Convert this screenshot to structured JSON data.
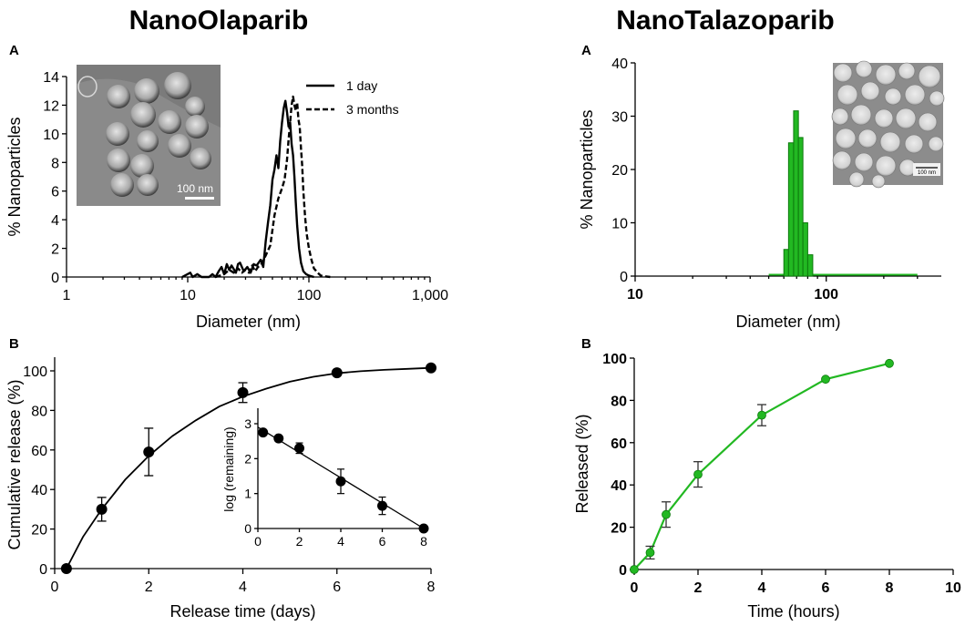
{
  "titles": {
    "left": "NanoOlaparib",
    "right": "NanoTalazoparib"
  },
  "panel_labels": {
    "top_left": "A",
    "bottom_left": "B",
    "top_right": "A",
    "bottom_right": "B"
  },
  "micrographs": {
    "olaparib_scale": "100 nm",
    "talazoparib_scale": "100 nm"
  },
  "colors": {
    "green": "#22b822",
    "green_dark": "#0d7a0d",
    "black": "#000000"
  },
  "chart_data": [
    {
      "id": "olaparib_size",
      "type": "line",
      "xscale": "log",
      "xlim": [
        1,
        1000
      ],
      "ylim": [
        0,
        14
      ],
      "xticks": [
        1,
        10,
        100,
        1000
      ],
      "xtick_labels": [
        "1",
        "10",
        "100",
        "1,000"
      ],
      "yticks": [
        0,
        2,
        4,
        6,
        8,
        10,
        12,
        14
      ],
      "xlabel": "Diameter (nm)",
      "ylabel": "% Nanoparticles",
      "legend_position": "top-right",
      "series": [
        {
          "name": "1 day",
          "style": "solid",
          "x": [
            9,
            10.5,
            11,
            12,
            13,
            15,
            16,
            17,
            18,
            19,
            20,
            21,
            22,
            23,
            25,
            26,
            27,
            29,
            31,
            33,
            35,
            37,
            40,
            42,
            44,
            46,
            48,
            50,
            52,
            54,
            56,
            58,
            60,
            62,
            64,
            66,
            68,
            70,
            72,
            74,
            76,
            78,
            80,
            83,
            86,
            90,
            95,
            100,
            110
          ],
          "y": [
            0,
            0.3,
            0,
            0.2,
            0,
            0,
            0.2,
            0,
            0.4,
            0.7,
            0.2,
            0.9,
            0.5,
            0.8,
            0.3,
            0.9,
            1.0,
            0.4,
            0.7,
            0.3,
            0.9,
            0.8,
            1.2,
            0.7,
            2.5,
            3.8,
            5.0,
            6.8,
            7.5,
            8.5,
            7.6,
            9.5,
            10.8,
            11.8,
            12.3,
            11.5,
            10.5,
            10.8,
            9.3,
            8.5,
            7.0,
            5.2,
            3.6,
            2.0,
            1.0,
            0.4,
            0.2,
            0.1,
            0
          ]
        },
        {
          "name": "3 months",
          "style": "dashed",
          "x": [
            17,
            20,
            22,
            24,
            26,
            28,
            30,
            32,
            34,
            36,
            38,
            40,
            44,
            48,
            52,
            56,
            60,
            63,
            66,
            68,
            70,
            72,
            74,
            76,
            78,
            80,
            82,
            84,
            86,
            88,
            90,
            93,
            96,
            100,
            105,
            110,
            118,
            125,
            135,
            150
          ],
          "y": [
            0,
            0.2,
            0.5,
            0.3,
            0.6,
            0.3,
            0.5,
            0.3,
            0.8,
            0.4,
            0.7,
            0.8,
            1.5,
            2.2,
            4.3,
            5.5,
            6.2,
            6.8,
            8.2,
            9.6,
            10.8,
            12.0,
            12.6,
            12.0,
            11.6,
            12.2,
            11.0,
            10.5,
            9.0,
            7.8,
            6.0,
            4.2,
            3.0,
            2.0,
            1.2,
            0.6,
            0.3,
            0.1,
            0.05,
            0
          ]
        }
      ]
    },
    {
      "id": "olaparib_release",
      "type": "scatter",
      "xlim": [
        0,
        8
      ],
      "ylim": [
        0,
        100
      ],
      "xticks": [
        0,
        2,
        4,
        6,
        8
      ],
      "yticks": [
        0,
        20,
        40,
        60,
        80,
        100
      ],
      "xlabel": "Release time (days)",
      "ylabel": "Cumulative release (%)",
      "points": {
        "x": [
          0.25,
          1,
          2,
          4,
          6,
          8
        ],
        "y": [
          0,
          30,
          59,
          89,
          99,
          101.5
        ],
        "err": [
          0,
          6,
          12,
          5,
          0,
          0
        ]
      },
      "fit_curve": {
        "x": [
          0.25,
          0.6,
          1,
          1.5,
          2,
          2.5,
          3,
          3.5,
          4,
          4.5,
          5,
          5.5,
          6,
          6.5,
          7,
          7.5,
          8
        ],
        "y": [
          0,
          16,
          30,
          45,
          57,
          67,
          75,
          82,
          87,
          91,
          94.5,
          97,
          98.8,
          99.8,
          100.5,
          101,
          101.5
        ]
      }
    },
    {
      "id": "olaparib_log_inset",
      "type": "scatter",
      "xlim": [
        0,
        8
      ],
      "ylim": [
        0,
        3
      ],
      "xticks": [
        0,
        2,
        4,
        6,
        8
      ],
      "yticks": [
        0,
        1,
        2,
        3
      ],
      "xlabel": "",
      "ylabel": "log (remaining)",
      "points": {
        "x": [
          0.25,
          1,
          2,
          4,
          6,
          8
        ],
        "y": [
          2.75,
          2.58,
          2.3,
          1.35,
          0.65,
          0
        ],
        "err": [
          0.08,
          0.08,
          0.15,
          0.35,
          0.25,
          0
        ]
      },
      "fit_line": {
        "x": [
          0,
          8
        ],
        "y": [
          2.9,
          0
        ]
      }
    },
    {
      "id": "talazoparib_size",
      "type": "bar",
      "xscale": "log",
      "xlim": [
        10,
        400
      ],
      "ylim": [
        0,
        40
      ],
      "xticks": [
        10,
        100
      ],
      "xtick_labels": [
        "10",
        "100"
      ],
      "yticks": [
        0,
        10,
        20,
        30,
        40
      ],
      "xlabel": "Diameter (nm)",
      "ylabel": "% Nanoparticles",
      "bin_edges": [
        60,
        63.5,
        67.5,
        71.5,
        75.5,
        80,
        85
      ],
      "values": [
        5,
        25,
        31,
        26,
        10,
        4
      ],
      "baseline_range": [
        50,
        300
      ]
    },
    {
      "id": "talazoparib_release",
      "type": "line",
      "xlim": [
        0,
        10
      ],
      "ylim": [
        0,
        100
      ],
      "xticks": [
        0,
        2,
        4,
        6,
        8,
        10
      ],
      "yticks": [
        0,
        20,
        40,
        60,
        80,
        100
      ],
      "xlabel": "Time (hours)",
      "ylabel": "Released (%)",
      "x": [
        0,
        0.5,
        1,
        2,
        4,
        6,
        8
      ],
      "y": [
        0,
        8,
        26,
        45,
        73,
        90,
        97.5
      ],
      "err": [
        0,
        3,
        6,
        6,
        5,
        0,
        0
      ]
    }
  ]
}
